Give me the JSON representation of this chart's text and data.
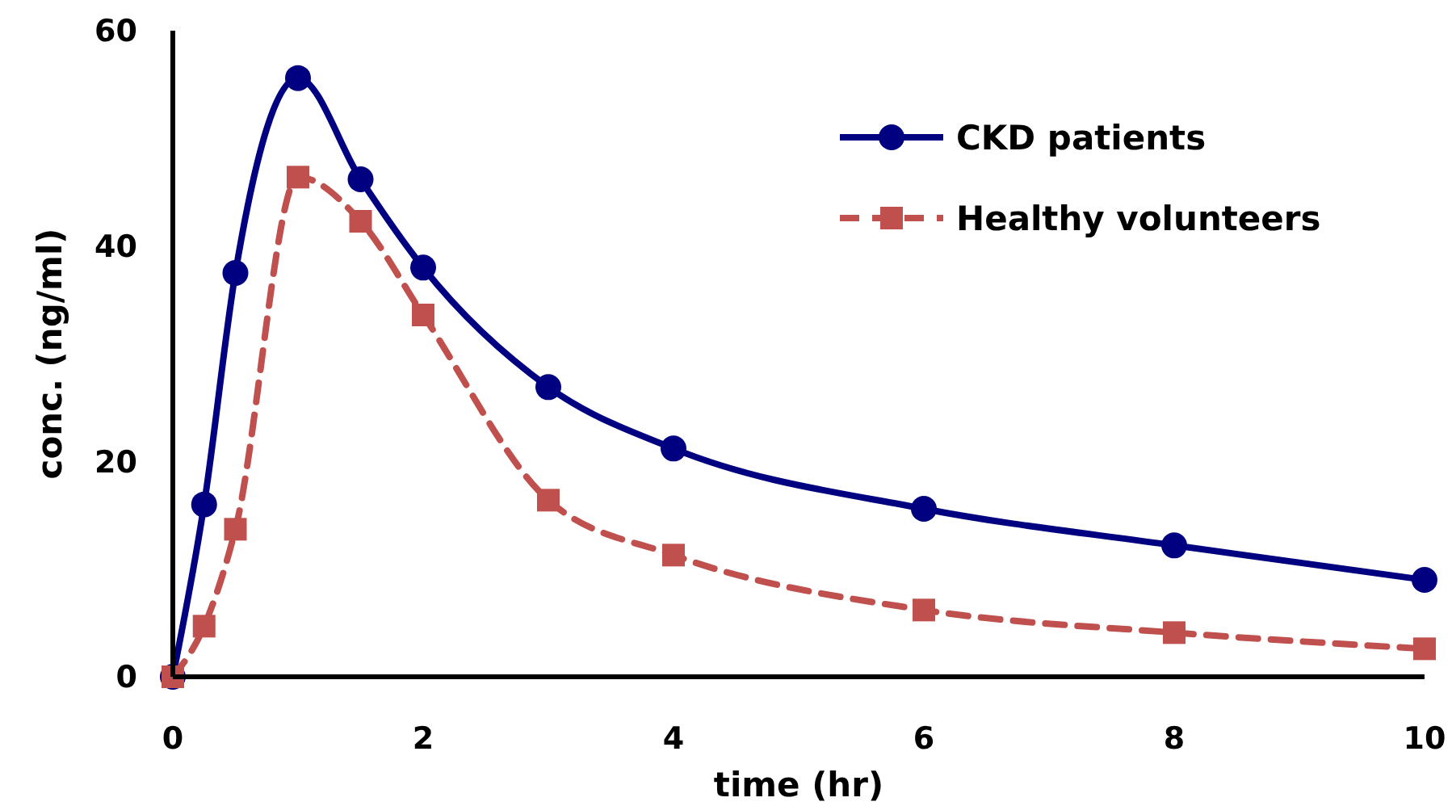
{
  "chart_data": {
    "type": "line",
    "xlabel": "time (hr)",
    "ylabel": "conc. (ng/ml)",
    "xlim": [
      0,
      10
    ],
    "xticks": [
      0,
      2,
      4,
      6,
      8,
      10
    ],
    "ylim": [
      0,
      60
    ],
    "yticks": [
      0,
      20,
      40,
      60
    ],
    "grid": false,
    "legend": "top right",
    "x": [
      0,
      0.25,
      0.5,
      1,
      1.5,
      2,
      3,
      4,
      6,
      8,
      10
    ],
    "series": [
      {
        "name": "CKD patients",
        "color": "#000080",
        "marker": "circle",
        "line_style": "solid",
        "values": [
          0,
          16,
          37.5,
          55.6,
          46.2,
          38,
          26.9,
          21.2,
          15.6,
          12.2,
          9
        ]
      },
      {
        "name": "Healthy volunteers",
        "color": "#c0504d",
        "marker": "square",
        "line_style": "dashed",
        "values": [
          0,
          4.7,
          13.7,
          46.4,
          42.3,
          33.6,
          16.4,
          11.3,
          6.2,
          4.1,
          2.6
        ]
      }
    ]
  }
}
